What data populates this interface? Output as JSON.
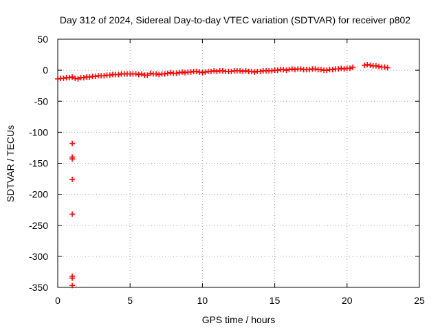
{
  "chart_data": {
    "type": "scatter",
    "title": "Day 312 of 2024, Sidereal Day-to-day VTEC variation (SDTVAR) for receiver p802",
    "xlabel": "GPS time / hours",
    "ylabel": "SDTVAR / TECUs",
    "xlim": [
      0,
      25
    ],
    "ylim": [
      -350,
      50
    ],
    "xticks": [
      0,
      5,
      10,
      15,
      20,
      25
    ],
    "yticks": [
      -350,
      -300,
      -250,
      -200,
      -150,
      -100,
      -50,
      0,
      50
    ],
    "grid": true,
    "marker": "plus",
    "color": "#ff0000",
    "series": [
      {
        "name": "SDTVAR",
        "x": [
          0.0,
          0.2,
          0.4,
          0.6,
          0.8,
          1.0,
          1.2,
          1.4,
          1.6,
          1.8,
          2.0,
          2.2,
          2.4,
          2.6,
          2.8,
          3.0,
          3.2,
          3.4,
          3.6,
          3.8,
          4.0,
          4.2,
          4.4,
          4.6,
          4.8,
          5.0,
          5.2,
          5.4,
          5.6,
          5.8,
          6.0,
          6.2,
          6.4,
          6.6,
          6.8,
          7.0,
          7.2,
          7.4,
          7.6,
          7.8,
          8.0,
          8.2,
          8.4,
          8.6,
          8.8,
          9.0,
          9.2,
          9.4,
          9.6,
          9.8,
          10.0,
          10.2,
          10.4,
          10.6,
          10.8,
          11.0,
          11.2,
          11.4,
          11.6,
          11.8,
          12.0,
          12.2,
          12.4,
          12.6,
          12.8,
          13.0,
          13.2,
          13.4,
          13.6,
          13.8,
          14.0,
          14.2,
          14.4,
          14.6,
          14.8,
          15.0,
          15.2,
          15.4,
          15.6,
          15.8,
          16.0,
          16.2,
          16.4,
          16.6,
          16.8,
          17.0,
          17.2,
          17.4,
          17.6,
          17.8,
          18.0,
          18.2,
          18.4,
          18.6,
          18.8,
          19.0,
          19.2,
          19.4,
          19.6,
          19.8,
          20.0,
          20.2,
          20.4,
          21.2,
          21.4,
          21.6,
          21.8,
          22.0,
          22.2,
          22.4,
          22.6,
          22.8,
          1.0,
          1.0,
          1.0,
          1.0,
          1.0,
          1.0,
          1.0,
          1.0
        ],
        "y": [
          -14,
          -13,
          -13,
          -12,
          -12,
          -11,
          -13,
          -14,
          -12,
          -12,
          -11,
          -11,
          -10,
          -10,
          -9,
          -9,
          -9,
          -8,
          -8,
          -7,
          -7,
          -7,
          -6,
          -6,
          -6,
          -6,
          -6,
          -6,
          -7,
          -6,
          -8,
          -8,
          -5,
          -6,
          -6,
          -7,
          -6,
          -6,
          -5,
          -4,
          -5,
          -5,
          -4,
          -3,
          -4,
          -3,
          -3,
          -2,
          -2,
          -3,
          -4,
          -3,
          -2,
          -2,
          -1,
          -2,
          -1,
          -1,
          -2,
          -2,
          -2,
          -1,
          -1,
          -1,
          -2,
          -1,
          -2,
          -2,
          -3,
          -2,
          -2,
          -1,
          -1,
          -1,
          -1,
          0,
          0,
          1,
          1,
          0,
          1,
          2,
          1,
          2,
          2,
          1,
          1,
          1,
          2,
          2,
          1,
          1,
          0,
          0,
          1,
          1,
          2,
          2,
          3,
          2,
          3,
          3,
          5,
          8,
          9,
          8,
          7,
          7,
          6,
          5,
          5,
          4,
          -118,
          -140,
          -143,
          -176,
          -232,
          -332,
          -335,
          -347
        ]
      }
    ]
  }
}
